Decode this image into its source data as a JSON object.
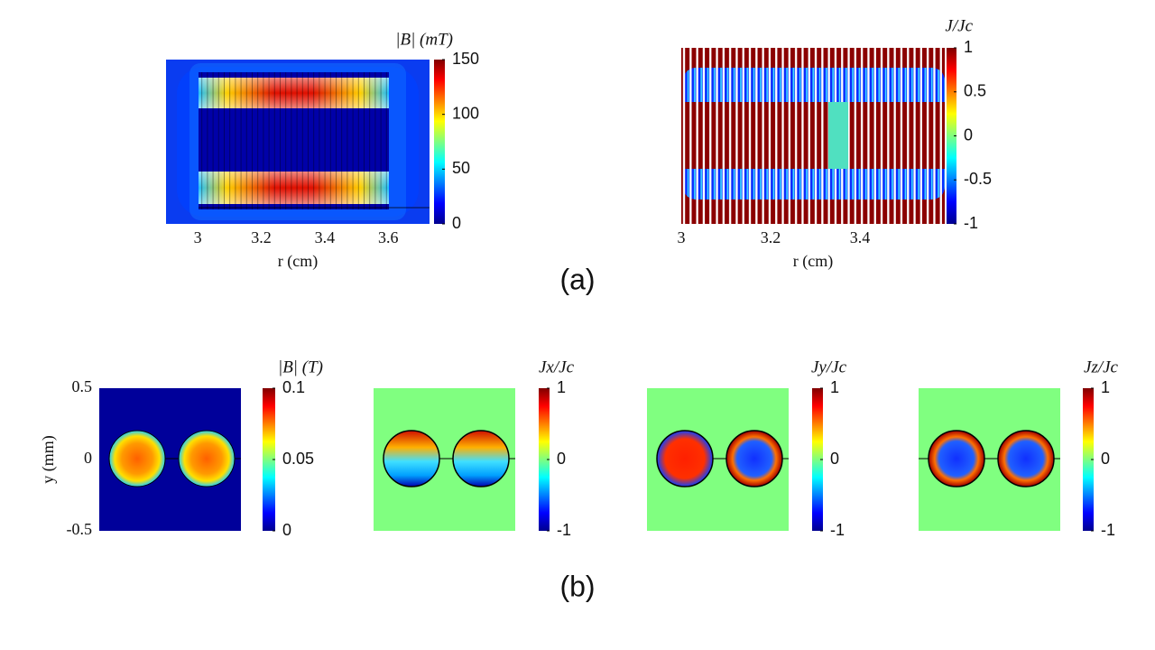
{
  "figure_a": {
    "caption": "(a)",
    "panels": [
      {
        "xlim": [
          2.9,
          3.73
        ],
        "xticks": [
          3,
          3.2,
          3.4,
          3.6
        ],
        "xlabel": "r (cm)",
        "colorbar": {
          "label": "|B| (mT)",
          "lim": [
            0,
            150
          ],
          "ticks": [
            0,
            50,
            100,
            150
          ]
        }
      },
      {
        "xlim": [
          3,
          3.59
        ],
        "xticks": [
          3,
          3.2,
          3.4
        ],
        "xlabel": "r (cm)",
        "colorbar": {
          "label": "J/Jc",
          "lim": [
            -1,
            1
          ],
          "ticks": [
            -1,
            -0.5,
            0,
            0.5,
            1
          ]
        }
      }
    ]
  },
  "figure_b": {
    "caption": "(b)",
    "panels": [
      {
        "ylim": [
          -0.5,
          0.5
        ],
        "yticks": [
          -0.5,
          0,
          0.5
        ],
        "ylabel": "y (mm)",
        "colorbar": {
          "label": "|B| (T)",
          "lim": [
            0,
            0.1
          ],
          "ticks": [
            0,
            0.05,
            0.1
          ]
        }
      },
      {
        "colorbar": {
          "label": "Jx/Jc",
          "lim": [
            -1,
            1
          ],
          "ticks": [
            -1,
            0,
            1
          ]
        }
      },
      {
        "colorbar": {
          "label": "Jy/Jc",
          "lim": [
            -1,
            1
          ],
          "ticks": [
            -1,
            0,
            1
          ]
        }
      },
      {
        "colorbar": {
          "label": "Jz/Jc",
          "lim": [
            -1,
            1
          ],
          "ticks": [
            -1,
            0,
            1
          ]
        }
      }
    ]
  }
}
